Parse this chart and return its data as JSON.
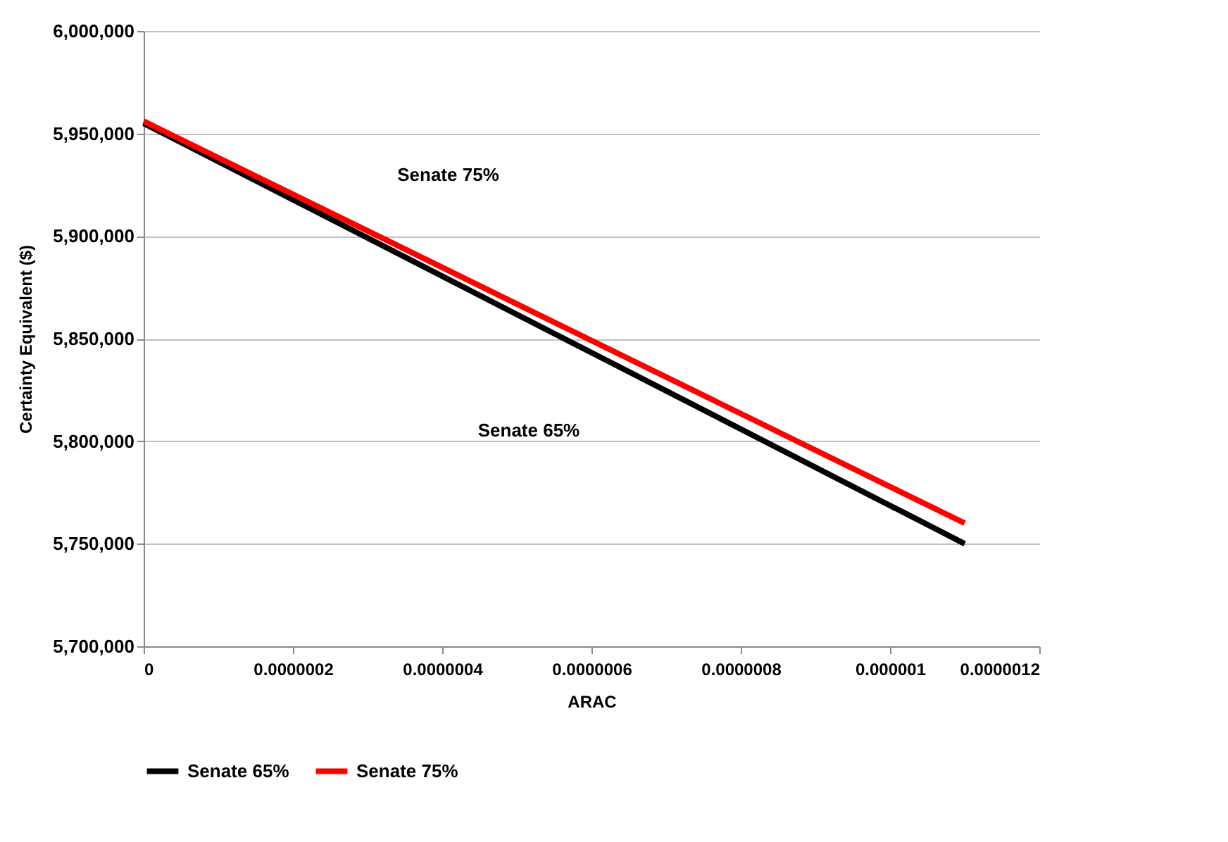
{
  "chart_data": {
    "type": "line",
    "xlabel": "ARAC",
    "ylabel": "Certainty Equivalent ($)",
    "x": [
      0,
      1.1e-06
    ],
    "series": [
      {
        "name": "Senate 65%",
        "color": "#000000",
        "values": [
          5955000,
          5750000
        ]
      },
      {
        "name": "Senate 75%",
        "color": "#ff0000",
        "values": [
          5956000,
          5760000
        ]
      }
    ],
    "xlim": [
      0,
      1.2e-06
    ],
    "xticks": [
      0,
      {
        "value": 2e-07,
        "label": "0.0000002"
      },
      {
        "value": 4e-07,
        "label": "0.0000004"
      },
      {
        "value": 6e-07,
        "label": "0.0000006"
      },
      {
        "value": 8e-07,
        "label": "0.0000008"
      },
      {
        "value": 1e-06,
        "label": "0.000001"
      },
      {
        "value": 1.2e-06,
        "label": "0.0000012"
      }
    ],
    "ylim": [
      5700000,
      6000000
    ],
    "yticks": [
      {
        "value": 5700000,
        "label": "5,700,000"
      },
      {
        "value": 5750000,
        "label": "5,750,000"
      },
      {
        "value": 5800000,
        "label": "5,800,000"
      },
      {
        "value": 5850000,
        "label": "5,850,000"
      },
      {
        "value": 5900000,
        "label": "5,900,000"
      },
      {
        "value": 5950000,
        "label": "5,950,000"
      },
      {
        "value": 6000000,
        "label": "6,000,000"
      }
    ],
    "annotations": [
      "Senate 75%",
      "Senate 65%"
    ],
    "grid": "y",
    "legend": "bottom",
    "marker": "none",
    "line_style": "solid"
  }
}
